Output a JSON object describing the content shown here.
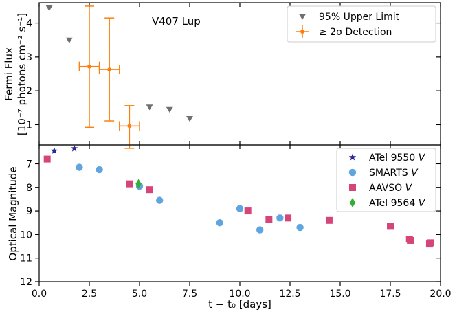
{
  "chart_data": [
    {
      "type": "scatter",
      "panel": "top",
      "annotation": "V407 Lup",
      "ylabel_line1": "Fermi Flux",
      "ylabel_line2": "[10⁻⁷ photons cm⁻² s⁻¹]",
      "xlim": [
        0,
        20
      ],
      "ylim": [
        0.4,
        4.6
      ],
      "yticks": [
        1,
        2,
        3,
        4
      ],
      "ytick_labels": [
        "1",
        "2",
        "3",
        "4"
      ],
      "legend_position": "top-right",
      "colors": {
        "upper": "#707070",
        "detection": "#ff7f0e"
      },
      "series": [
        {
          "name": "95% Upper Limit",
          "marker": "triangle-down",
          "x": [
            0.5,
            1.5,
            5.5,
            6.5,
            7.5
          ],
          "y": [
            4.45,
            3.5,
            1.52,
            1.45,
            1.18
          ]
        },
        {
          "name": "≥ 2σ Detection",
          "marker": "circle-errorbar",
          "x": [
            2.5,
            3.5,
            4.5
          ],
          "y": [
            2.72,
            2.63,
            0.96
          ],
          "xerr": [
            0.5,
            0.5,
            0.5
          ],
          "yerr_low": [
            1.8,
            1.52,
            0.66
          ],
          "yerr_high": [
            1.78,
            1.52,
            0.6
          ]
        }
      ]
    },
    {
      "type": "scatter",
      "panel": "bottom",
      "xlabel": "t − t₀ [days]",
      "ylabel": "Optical Magnitude",
      "xlim": [
        0,
        20
      ],
      "ylim": [
        12,
        6.2
      ],
      "inverted_y": true,
      "xticks": [
        0,
        2.5,
        5,
        7.5,
        10,
        12.5,
        15,
        17.5,
        20
      ],
      "xtick_labels": [
        "0.0",
        "2.5",
        "5.0",
        "7.5",
        "10.0",
        "12.5",
        "15.0",
        "17.5",
        "20.0"
      ],
      "yticks": [
        7,
        8,
        9,
        10,
        11,
        12
      ],
      "ytick_labels": [
        "7",
        "8",
        "9",
        "10",
        "11",
        "12"
      ],
      "legend_position": "top-right",
      "colors": {
        "atel9550": "#2a2a8f",
        "smarts": "#5fa5e0",
        "aavso": "#d6457a",
        "atel9564": "#33b033"
      },
      "series": [
        {
          "name": "ATel 9550",
          "band": "V",
          "marker": "star",
          "x": [
            0.75,
            1.75
          ],
          "y": [
            6.45,
            6.35
          ]
        },
        {
          "name": "SMARTS",
          "band": "V",
          "marker": "circle",
          "x": [
            2.0,
            3.0,
            5.0,
            6.0,
            9.0,
            10.0,
            11.0,
            12.0,
            13.0
          ],
          "y": [
            7.15,
            7.25,
            7.95,
            8.55,
            9.5,
            8.9,
            9.8,
            9.3,
            9.7
          ]
        },
        {
          "name": "AAVSO",
          "band": "V",
          "marker": "square",
          "x": [
            0.4,
            4.5,
            5.5,
            10.4,
            11.45,
            12.4,
            14.45,
            17.5,
            18.45,
            18.5,
            19.45,
            19.5
          ],
          "y": [
            6.8,
            7.85,
            8.1,
            9.0,
            9.35,
            9.3,
            9.4,
            9.65,
            10.2,
            10.25,
            10.4,
            10.35
          ]
        },
        {
          "name": "ATel 9564",
          "band": "V",
          "marker": "diamond",
          "x": [
            4.95
          ],
          "y": [
            7.85
          ]
        }
      ]
    }
  ]
}
